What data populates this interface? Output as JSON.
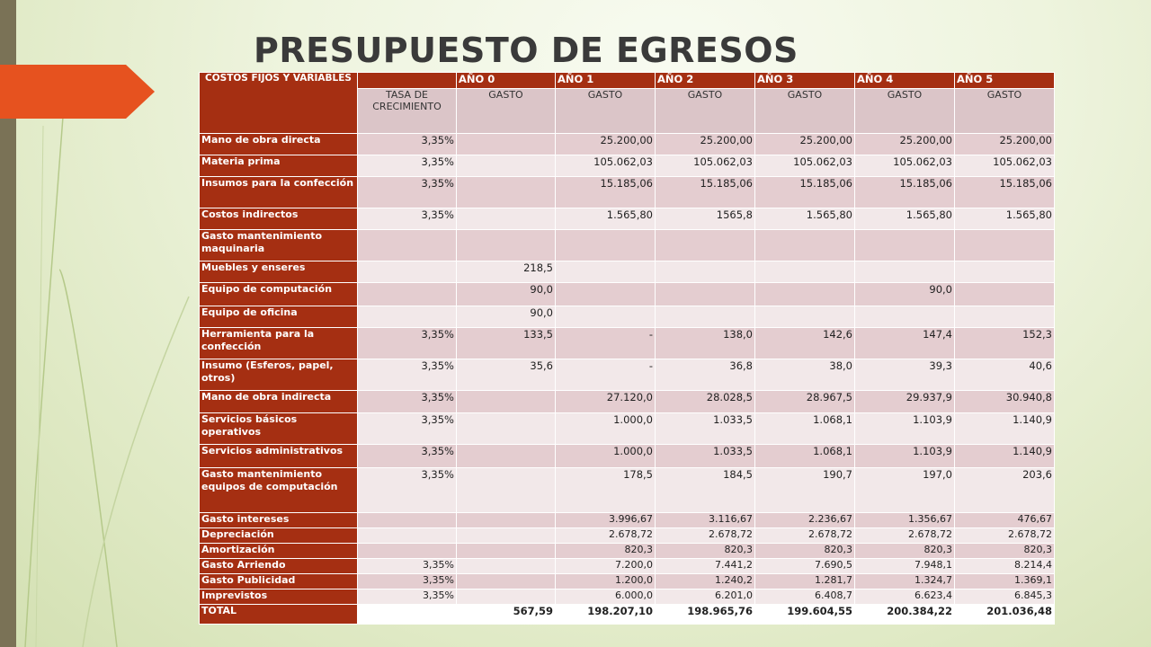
{
  "title": "PRESUPUESTO DE EGRESOS",
  "colors": {
    "header_red": "#a52f12",
    "band_dark": "#e4cdd0",
    "band_light": "#f2e8e9",
    "subheader": "#dbc5c8",
    "left_bar": "#7a7256"
  },
  "table": {
    "corner_label": "COSTOS FIJOS Y VARIABLES",
    "year_headers": [
      "AÑO 0",
      "AÑO 1",
      "AÑO 2",
      "AÑO 3",
      "AÑO 4",
      "AÑO 5"
    ],
    "sub_headers": [
      "TASA DE CRECIMIENTO",
      "GASTO",
      "GASTO",
      "GASTO",
      "GASTO",
      "GASTO",
      "GASTO"
    ],
    "rows": [
      {
        "label": "Mano de obra directa",
        "cells": [
          "3,35%",
          "",
          "25.200,00",
          "25.200,00",
          "25.200,00",
          "25.200,00",
          "25.200,00"
        ]
      },
      {
        "label": "Materia prima",
        "cells": [
          "3,35%",
          "",
          "105.062,03",
          "105.062,03",
          "105.062,03",
          "105.062,03",
          "105.062,03"
        ]
      },
      {
        "label": "Insumos para la confección",
        "cells": [
          "3,35%",
          "",
          "15.185,06",
          "15.185,06",
          "15.185,06",
          "15.185,06",
          "15.185,06"
        ]
      },
      {
        "label": "Costos indirectos",
        "cells": [
          "3,35%",
          "",
          "1.565,80",
          "1565,8",
          "1.565,80",
          "1.565,80",
          "1.565,80"
        ]
      },
      {
        "label": "Gasto mantenimiento maquinaria",
        "cells": [
          "",
          "",
          "",
          "",
          "",
          "",
          ""
        ]
      },
      {
        "label": "Muebles y enseres",
        "cells": [
          "",
          "218,5",
          "",
          "",
          "",
          "",
          ""
        ]
      },
      {
        "label": "Equipo de computación",
        "cells": [
          "",
          "90,0",
          "",
          "",
          "",
          "90,0",
          ""
        ]
      },
      {
        "label": "Equipo de oficina",
        "cells": [
          "",
          "90,0",
          "",
          "",
          "",
          "",
          ""
        ]
      },
      {
        "label": "Herramienta para la confección",
        "cells": [
          "3,35%",
          "133,5",
          "-",
          "138,0",
          "142,6",
          "147,4",
          "152,3"
        ]
      },
      {
        "label": "Insumo (Esferos, papel, otros)",
        "cells": [
          "3,35%",
          "35,6",
          "-",
          "36,8",
          "38,0",
          "39,3",
          "40,6"
        ]
      },
      {
        "label": "Mano de obra indirecta",
        "cells": [
          "3,35%",
          "",
          "27.120,0",
          "28.028,5",
          "28.967,5",
          "29.937,9",
          "30.940,8"
        ]
      },
      {
        "label": "Servicios básicos operativos",
        "cells": [
          "3,35%",
          "",
          "1.000,0",
          "1.033,5",
          "1.068,1",
          "1.103,9",
          "1.140,9"
        ]
      },
      {
        "label": "Servicios administrativos",
        "cells": [
          "3,35%",
          "",
          "1.000,0",
          "1.033,5",
          "1.068,1",
          "1.103,9",
          "1.140,9"
        ]
      },
      {
        "label": "Gasto mantenimiento equipos de computación",
        "cells": [
          "3,35%",
          "",
          "178,5",
          "184,5",
          "190,7",
          "197,0",
          "203,6"
        ]
      },
      {
        "label": "Gasto intereses",
        "cells": [
          "",
          "",
          "3.996,67",
          "3.116,67",
          "2.236,67",
          "1.356,67",
          "476,67"
        ]
      },
      {
        "label": "Depreciación",
        "cells": [
          "",
          "",
          "2.678,72",
          "2.678,72",
          "2.678,72",
          "2.678,72",
          "2.678,72"
        ]
      },
      {
        "label": "Amortización",
        "cells": [
          "",
          "",
          "820,3",
          "820,3",
          "820,3",
          "820,3",
          "820,3"
        ]
      },
      {
        "label": "Gasto Arriendo",
        "cells": [
          "3,35%",
          "",
          "7.200,0",
          "7.441,2",
          "7.690,5",
          "7.948,1",
          "8.214,4"
        ]
      },
      {
        "label": "Gasto Publicidad",
        "cells": [
          "3,35%",
          "",
          "1.200,0",
          "1.240,2",
          "1.281,7",
          "1.324,7",
          "1.369,1"
        ]
      },
      {
        "label": "Imprevistos",
        "cells": [
          "3,35%",
          "",
          "6.000,0",
          "6.201,0",
          "6.408,7",
          "6.623,4",
          "6.845,3"
        ]
      }
    ],
    "total": {
      "label": "TOTAL",
      "cells": [
        "",
        "567,59",
        "198.207,10",
        "198.965,76",
        "199.604,55",
        "200.384,22",
        "201.036,48"
      ]
    }
  }
}
